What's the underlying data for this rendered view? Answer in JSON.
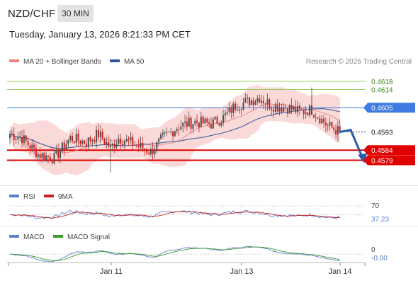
{
  "header": {
    "pair": "NZD/CHF",
    "timeframe": "30 MIN",
    "timestamp": "Tuesday, January 13, 2026 8:21:33 PM CET"
  },
  "colors": {
    "candle_up": "#4d4d4d",
    "candle_down": "#cc1f1f",
    "bollinger_fill": "#f9d3d1",
    "ma20": "#e88a86",
    "ma50": "#2e5496",
    "resistance": "#9ccc65",
    "pivot": "#3f7be0",
    "support": "#e00000",
    "rsi": "#5a7fd0",
    "rsi_9ma": "#cc1f1f",
    "macd": "#5a7fd0",
    "macd_signal": "#3a9a2a",
    "arrow": "#2a5aa8"
  },
  "chart_data": [
    {
      "type": "candlestick",
      "panel": "price",
      "legend": [
        {
          "label": "MA 20 + Bollinger Bands",
          "color": "#f08080"
        },
        {
          "label": "MA 50",
          "color": "#2e5496"
        }
      ],
      "watermark": "Research © 2026 Trading Central",
      "x_ticks": [
        "Jan 11",
        "Jan 13",
        "Jan 14"
      ],
      "ylim": [
        0.4568,
        0.4625
      ],
      "levels": [
        {
          "label": "0.4618",
          "value": 0.4618,
          "kind": "resistance"
        },
        {
          "label": "0.4614",
          "value": 0.4614,
          "kind": "resistance"
        },
        {
          "label": "0.4605",
          "value": 0.4605,
          "kind": "pivot"
        },
        {
          "label": "0.4593",
          "value": 0.4593,
          "kind": "last_price"
        },
        {
          "label": "0.4584",
          "value": 0.4584,
          "kind": "support"
        },
        {
          "label": "0.4579",
          "value": 0.4579,
          "kind": "support"
        }
      ],
      "anchors": [
        [
          0,
          0.4592
        ],
        [
          6,
          0.459
        ],
        [
          14,
          0.4582
        ],
        [
          22,
          0.458
        ],
        [
          30,
          0.459
        ],
        [
          38,
          0.4588
        ],
        [
          44,
          0.4592
        ],
        [
          50,
          0.4585
        ],
        [
          54,
          0.459
        ],
        [
          62,
          0.4587
        ],
        [
          70,
          0.4583
        ],
        [
          76,
          0.459
        ],
        [
          84,
          0.4596
        ],
        [
          92,
          0.4598
        ],
        [
          100,
          0.4597
        ],
        [
          106,
          0.46
        ],
        [
          112,
          0.4606
        ],
        [
          118,
          0.4608
        ],
        [
          124,
          0.461
        ],
        [
          130,
          0.4606
        ],
        [
          138,
          0.4605
        ],
        [
          144,
          0.4603
        ],
        [
          150,
          0.4604
        ],
        [
          154,
          0.46
        ],
        [
          158,
          0.4596
        ],
        [
          164,
          0.4593
        ]
      ]
    },
    {
      "type": "line",
      "panel": "rsi",
      "series": [
        {
          "name": "RSI"
        },
        {
          "name": "9MA"
        }
      ],
      "levels": [
        {
          "label": "70",
          "value": 70
        }
      ],
      "last_value_label": "37.23",
      "ylim": [
        30,
        75
      ]
    },
    {
      "type": "line",
      "panel": "macd",
      "series": [
        {
          "name": "MACD"
        },
        {
          "name": "MACD Signal"
        }
      ],
      "levels": [
        {
          "label": "0",
          "value": 0
        }
      ],
      "last_value_label": "-0.00",
      "ylim": [
        -0.0004,
        0.0006
      ]
    }
  ]
}
